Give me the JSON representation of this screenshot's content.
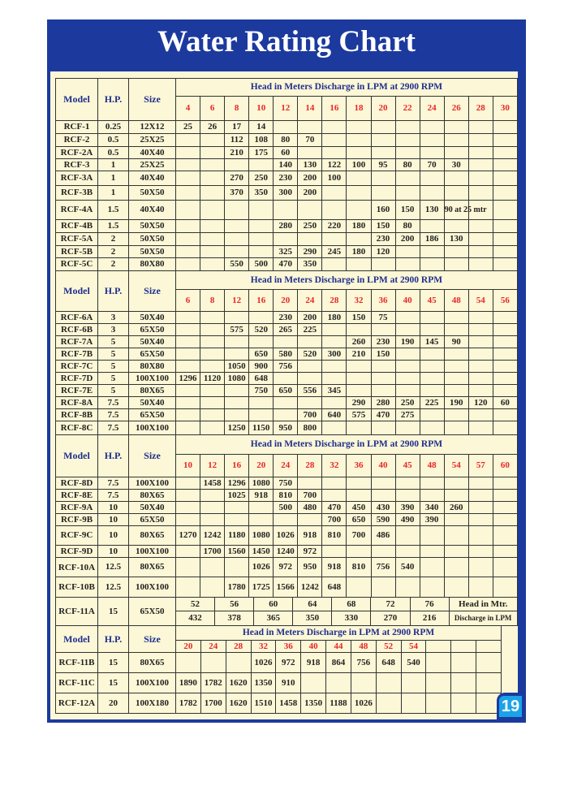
{
  "title": "Water Rating Chart",
  "page_number": "19",
  "colors": {
    "frame": "#1c3a9e",
    "panel": "#fcf7d6",
    "header_text": "#1f2f8f",
    "head_values": "#e8262a",
    "badge": "#1aa3e8"
  },
  "labels": {
    "model": "Model",
    "hp": "H.P.",
    "size": "Size",
    "head_title": "Head in Meters Discharge in LPM at 2900 RPM",
    "head_in_mtr": "Head in Mtr.",
    "discharge_in_lpm": "Discharge in LPM"
  },
  "sections": [
    {
      "heads": [
        "4",
        "6",
        "8",
        "10",
        "12",
        "14",
        "16",
        "18",
        "20",
        "22",
        "24",
        "26",
        "28",
        "30"
      ],
      "rows": [
        {
          "model": "RCF-1",
          "hp": "0.25",
          "size": "12X12",
          "values": [
            "25",
            "26",
            "17",
            "14",
            "",
            "",
            "",
            "",
            "",
            "",
            "",
            "",
            "",
            ""
          ]
        },
        {
          "model": "RCF-2",
          "hp": "0.5",
          "size": "25X25",
          "values": [
            "",
            "",
            "112",
            "108",
            "80",
            "70",
            "",
            "",
            "",
            "",
            "",
            "",
            "",
            ""
          ]
        },
        {
          "model": "RCF-2A",
          "hp": "0.5",
          "size": "40X40",
          "values": [
            "",
            "",
            "210",
            "175",
            "60",
            "",
            "",
            "",
            "",
            "",
            "",
            "",
            "",
            ""
          ]
        },
        {
          "model": "RCF-3",
          "hp": "1",
          "size": "25X25",
          "values": [
            "",
            "",
            "",
            "",
            "140",
            "130",
            "122",
            "100",
            "95",
            "80",
            "70",
            "30",
            "",
            ""
          ]
        },
        {
          "model": "RCF-3A",
          "hp": "1",
          "size": "40X40",
          "values": [
            "",
            "",
            "270",
            "250",
            "230",
            "200",
            "100",
            "",
            "",
            "",
            "",
            "",
            "",
            ""
          ]
        },
        {
          "model": "RCF-3B",
          "hp": "1",
          "size": "50X50",
          "values": [
            "",
            "",
            "370",
            "350",
            "300",
            "200",
            "",
            "",
            "",
            "",
            "",
            "",
            "",
            ""
          ]
        },
        {
          "model": "RCF-4A",
          "hp": "1.5",
          "size": "40X40",
          "values": [
            "",
            "",
            "",
            "",
            "",
            "",
            "",
            "",
            "160",
            "150",
            "130",
            "90 at 25 mtr",
            "",
            ""
          ]
        },
        {
          "model": "RCF-4B",
          "hp": "1.5",
          "size": "50X50",
          "values": [
            "",
            "",
            "",
            "",
            "280",
            "250",
            "220",
            "180",
            "150",
            "80",
            "",
            "",
            "",
            ""
          ]
        },
        {
          "model": "RCF-5A",
          "hp": "2",
          "size": "50X50",
          "values": [
            "",
            "",
            "",
            "",
            "",
            "",
            "",
            "",
            "230",
            "200",
            "186",
            "130",
            "",
            ""
          ]
        },
        {
          "model": "RCF-5B",
          "hp": "2",
          "size": "50X50",
          "values": [
            "",
            "",
            "",
            "",
            "325",
            "290",
            "245",
            "180",
            "120",
            "",
            "",
            "",
            "",
            ""
          ]
        },
        {
          "model": "RCF-5C",
          "hp": "2",
          "size": "80X80",
          "values": [
            "",
            "",
            "550",
            "500",
            "470",
            "350",
            "",
            "",
            "",
            "",
            "",
            "",
            "",
            ""
          ]
        }
      ]
    },
    {
      "heads": [
        "6",
        "8",
        "12",
        "16",
        "20",
        "24",
        "28",
        "32",
        "36",
        "40",
        "45",
        "48",
        "54",
        "56"
      ],
      "rows": [
        {
          "model": "RCF-6A",
          "hp": "3",
          "size": "50X40",
          "values": [
            "",
            "",
            "",
            "",
            "230",
            "200",
            "180",
            "150",
            "75",
            "",
            "",
            "",
            "",
            ""
          ]
        },
        {
          "model": "RCF-6B",
          "hp": "3",
          "size": "65X50",
          "values": [
            "",
            "",
            "575",
            "520",
            "265",
            "225",
            "",
            "",
            "",
            "",
            "",
            "",
            "",
            ""
          ]
        },
        {
          "model": "RCF-7A",
          "hp": "5",
          "size": "50X40",
          "values": [
            "",
            "",
            "",
            "",
            "",
            "",
            "",
            "260",
            "230",
            "190",
            "145",
            "90",
            "",
            ""
          ]
        },
        {
          "model": "RCF-7B",
          "hp": "5",
          "size": "65X50",
          "values": [
            "",
            "",
            "",
            "650",
            "580",
            "520",
            "300",
            "210",
            "150",
            "",
            "",
            "",
            "",
            ""
          ]
        },
        {
          "model": "RCF-7C",
          "hp": "5",
          "size": "80X80",
          "values": [
            "",
            "",
            "1050",
            "900",
            "756",
            "",
            "",
            "",
            "",
            "",
            "",
            "",
            "",
            ""
          ]
        },
        {
          "model": "RCF-7D",
          "hp": "5",
          "size": "100X100",
          "values": [
            "1296",
            "1120",
            "1080",
            "648",
            "",
            "",
            "",
            "",
            "",
            "",
            "",
            "",
            "",
            ""
          ]
        },
        {
          "model": "RCF-7E",
          "hp": "5",
          "size": "80X65",
          "values": [
            "",
            "",
            "",
            "750",
            "650",
            "556",
            "345",
            "",
            "",
            "",
            "",
            "",
            "",
            ""
          ]
        },
        {
          "model": "RCF-8A",
          "hp": "7.5",
          "size": "50X40",
          "values": [
            "",
            "",
            "",
            "",
            "",
            "",
            "",
            "290",
            "280",
            "250",
            "225",
            "190",
            "120",
            "60"
          ]
        },
        {
          "model": "RCF-8B",
          "hp": "7.5",
          "size": "65X50",
          "values": [
            "",
            "",
            "",
            "",
            "",
            "700",
            "640",
            "575",
            "470",
            "275",
            "",
            "",
            "",
            ""
          ]
        },
        {
          "model": "RCF-8C",
          "hp": "7.5",
          "size": "100X100",
          "values": [
            "",
            "",
            "1250",
            "1150",
            "950",
            "800",
            "",
            "",
            "",
            "",
            "",
            "",
            "",
            ""
          ]
        }
      ]
    },
    {
      "heads": [
        "10",
        "12",
        "16",
        "20",
        "24",
        "28",
        "32",
        "36",
        "40",
        "45",
        "48",
        "54",
        "57",
        "60"
      ],
      "rows": [
        {
          "model": "RCF-8D",
          "hp": "7.5",
          "size": "100X100",
          "values": [
            "",
            "1458",
            "1296",
            "1080",
            "750",
            "",
            "",
            "",
            "",
            "",
            "",
            "",
            "",
            ""
          ]
        },
        {
          "model": "RCF-8E",
          "hp": "7.5",
          "size": "80X65",
          "values": [
            "",
            "",
            "1025",
            "918",
            "810",
            "700",
            "",
            "",
            "",
            "",
            "",
            "",
            "",
            ""
          ]
        },
        {
          "model": "RCF-9A",
          "hp": "10",
          "size": "50X40",
          "values": [
            "",
            "",
            "",
            "",
            "500",
            "480",
            "470",
            "450",
            "430",
            "390",
            "340",
            "260",
            "",
            ""
          ]
        },
        {
          "model": "RCF-9B",
          "hp": "10",
          "size": "65X50",
          "values": [
            "",
            "",
            "",
            "",
            "",
            "",
            "700",
            "650",
            "590",
            "490",
            "390",
            "",
            "",
            ""
          ]
        },
        {
          "model": "RCF-9C",
          "hp": "10",
          "size": "80X65",
          "values": [
            "1270",
            "1242",
            "1180",
            "1080",
            "1026",
            "918",
            "810",
            "700",
            "486",
            "",
            "",
            "",
            "",
            ""
          ]
        },
        {
          "model": "RCF-9D",
          "hp": "10",
          "size": "100X100",
          "values": [
            "",
            "1700",
            "1560",
            "1450",
            "1240",
            "972",
            "",
            "",
            "",
            "",
            "",
            "",
            "",
            ""
          ]
        },
        {
          "model": "RCF-10A",
          "hp": "12.5",
          "size": "80X65",
          "values": [
            "",
            "",
            "",
            "1026",
            "972",
            "950",
            "918",
            "810",
            "756",
            "540",
            "",
            "",
            "",
            ""
          ]
        },
        {
          "model": "RCF-10B",
          "hp": "12.5",
          "size": "100X100",
          "values": [
            "",
            "",
            "1780",
            "1725",
            "1566",
            "1242",
            "648",
            "",
            "",
            "",
            "",
            "",
            "",
            ""
          ]
        }
      ]
    }
  ],
  "rcf_11a": {
    "model": "RCF-11A",
    "hp": "15",
    "size": "65X50",
    "heads": [
      "52",
      "56",
      "60",
      "64",
      "68",
      "72",
      "76"
    ],
    "discharge": [
      "432",
      "378",
      "365",
      "350",
      "330",
      "270",
      "216"
    ]
  },
  "last_section": {
    "heads": [
      "20",
      "24",
      "28",
      "32",
      "36",
      "40",
      "44",
      "48",
      "52",
      "54",
      "",
      "",
      ""
    ],
    "rows": [
      {
        "model": "RCF-11B",
        "hp": "15",
        "size": "80X65",
        "values": [
          "",
          "",
          "",
          "1026",
          "972",
          "918",
          "864",
          "756",
          "648",
          "540",
          "",
          "",
          ""
        ]
      },
      {
        "model": "RCF-11C",
        "hp": "15",
        "size": "100X100",
        "values": [
          "1890",
          "1782",
          "1620",
          "1350",
          "910",
          "",
          "",
          "",
          "",
          "",
          "",
          "",
          ""
        ]
      },
      {
        "model": "RCF-12A",
        "hp": "20",
        "size": "100X180",
        "values": [
          "1782",
          "1700",
          "1620",
          "1510",
          "1458",
          "1350",
          "1188",
          "1026",
          "",
          "",
          "",
          "",
          ""
        ]
      }
    ]
  }
}
